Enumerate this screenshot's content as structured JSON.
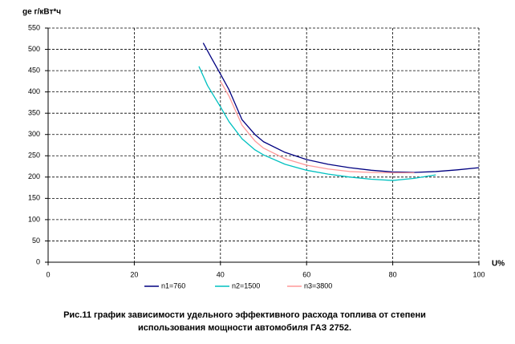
{
  "chart_data": {
    "type": "line",
    "y_label": "ge г/кВт*ч",
    "x_label": "U%",
    "caption": [
      "Рис.11 график зависимости удельного эффективного расхода топлива от степени",
      "использования мощности автомобиля ГАЗ 2752."
    ],
    "xlim": [
      0,
      100
    ],
    "xticks": [
      0,
      20,
      40,
      60,
      80,
      100
    ],
    "ylim": [
      0,
      550
    ],
    "yticks": [
      0,
      50,
      100,
      150,
      200,
      250,
      300,
      350,
      400,
      450,
      500,
      550
    ],
    "grid": true,
    "legend": "bottom",
    "series": [
      {
        "name": "n1=760",
        "color": "#000080",
        "x": [
          36,
          38,
          40,
          42,
          45,
          48,
          50,
          55,
          60,
          65,
          70,
          75,
          80,
          85,
          90,
          95,
          100
        ],
        "values": [
          515,
          478,
          442,
          405,
          335,
          300,
          283,
          258,
          241,
          230,
          222,
          216,
          212,
          211,
          213,
          217,
          222
        ]
      },
      {
        "name": "n2=1500",
        "color": "#00c0c0",
        "x": [
          35,
          37,
          40,
          42,
          45,
          48,
          50,
          55,
          60,
          65,
          70,
          75,
          80,
          85,
          90
        ],
        "values": [
          460,
          415,
          365,
          330,
          290,
          264,
          252,
          230,
          216,
          207,
          200,
          195,
          192,
          197,
          205
        ]
      },
      {
        "name": "n3=3800",
        "color": "#ff9999",
        "x": [
          40,
          42,
          45,
          48,
          50,
          55,
          60,
          65,
          70,
          75,
          80,
          85
        ],
        "values": [
          425,
          390,
          322,
          285,
          268,
          243,
          228,
          219,
          213,
          211,
          210,
          210
        ]
      }
    ]
  }
}
